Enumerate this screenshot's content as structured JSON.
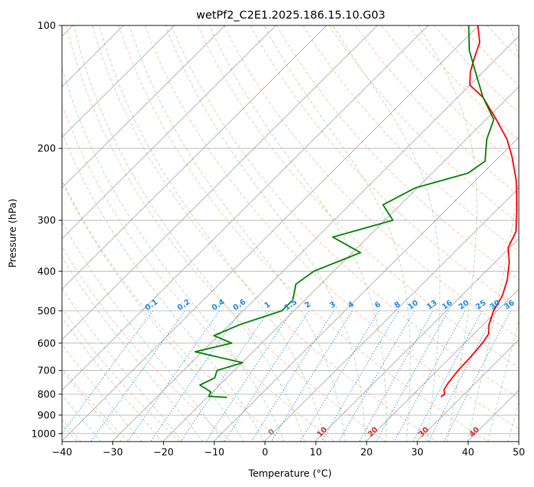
{
  "chart_data": {
    "type": "line",
    "subtype": "skew-t log-p diagram",
    "title": "wetPf2_C2E1.2025.186.15.10.G03",
    "xlabel": "Temperature (°C)",
    "ylabel": "Pressure (hPa)",
    "xlim": [
      -40,
      50
    ],
    "ylim": [
      1050,
      100
    ],
    "y_scale": "log",
    "x_ticks": [
      -40,
      -30,
      -20,
      -10,
      0,
      10,
      20,
      30,
      40,
      50
    ],
    "y_ticks": [
      100,
      200,
      300,
      400,
      500,
      600,
      700,
      800,
      900,
      1000
    ],
    "x_tick_labels": [
      "−40",
      "−30",
      "−20",
      "−10",
      "0",
      "10",
      "20",
      "30",
      "40",
      "50"
    ],
    "y_tick_labels": [
      "100",
      "200",
      "300",
      "400",
      "500",
      "600",
      "700",
      "800",
      "900",
      "1000"
    ],
    "grid": true,
    "legend": "none",
    "series": [
      {
        "color": "#ff0000",
        "points": [
          {
            "p": 812,
            "t": 25.8
          },
          {
            "p": 800,
            "t": 26.0
          },
          {
            "p": 780,
            "t": 25.0
          },
          {
            "p": 750,
            "t": 24.5
          },
          {
            "p": 700,
            "t": 24.0
          },
          {
            "p": 650,
            "t": 23.8
          },
          {
            "p": 600,
            "t": 23.4
          },
          {
            "p": 570,
            "t": 22.8
          },
          {
            "p": 540,
            "t": 21.0
          },
          {
            "p": 500,
            "t": 19.2
          },
          {
            "p": 460,
            "t": 18.0
          },
          {
            "p": 420,
            "t": 15.8
          },
          {
            "p": 380,
            "t": 12.7
          },
          {
            "p": 350,
            "t": 9.6
          },
          {
            "p": 320,
            "t": 8.0
          },
          {
            "p": 280,
            "t": 3.5
          },
          {
            "p": 240,
            "t": -2.0
          },
          {
            "p": 210,
            "t": -7.5
          },
          {
            "p": 190,
            "t": -12.0
          },
          {
            "p": 170,
            "t": -18.0
          },
          {
            "p": 150,
            "t": -25.0
          },
          {
            "p": 140,
            "t": -30.0
          },
          {
            "p": 130,
            "t": -32.5
          },
          {
            "p": 120,
            "t": -34.5
          },
          {
            "p": 110,
            "t": -36.5
          },
          {
            "p": 100,
            "t": -40.2
          }
        ]
      },
      {
        "color": "#008000",
        "points": [
          {
            "p": 815,
            "t": -16.2
          },
          {
            "p": 810,
            "t": -20.0
          },
          {
            "p": 790,
            "t": -20.5
          },
          {
            "p": 760,
            "t": -24.0
          },
          {
            "p": 730,
            "t": -22.5
          },
          {
            "p": 700,
            "t": -23.5
          },
          {
            "p": 670,
            "t": -20.0
          },
          {
            "p": 630,
            "t": -31.5
          },
          {
            "p": 600,
            "t": -26.0
          },
          {
            "p": 575,
            "t": -31.0
          },
          {
            "p": 540,
            "t": -28.0
          },
          {
            "p": 500,
            "t": -22.5
          },
          {
            "p": 470,
            "t": -22.5
          },
          {
            "p": 430,
            "t": -25.0
          },
          {
            "p": 400,
            "t": -24.0
          },
          {
            "p": 360,
            "t": -18.5
          },
          {
            "p": 330,
            "t": -27.0
          },
          {
            "p": 300,
            "t": -18.5
          },
          {
            "p": 275,
            "t": -23.5
          },
          {
            "p": 250,
            "t": -20.5
          },
          {
            "p": 230,
            "t": -13.0
          },
          {
            "p": 215,
            "t": -12.0
          },
          {
            "p": 190,
            "t": -16.0
          },
          {
            "p": 170,
            "t": -18.5
          },
          {
            "p": 150,
            "t": -25.0
          },
          {
            "p": 130,
            "t": -31.5
          },
          {
            "p": 115,
            "t": -37.0
          },
          {
            "p": 100,
            "t": -42.0
          }
        ]
      }
    ],
    "annotations": {
      "dry_adiabats": [
        "-100",
        "-90",
        "-80",
        "-70",
        "-60",
        "-50",
        "-40",
        "-30",
        "-20",
        "-10",
        "0",
        "10",
        "20",
        "30",
        "40"
      ],
      "mixing_ratios": [
        "0.1",
        "0.2",
        "0.4",
        "0.6",
        "1",
        "1.5",
        "2",
        "3",
        "4",
        "6",
        "8",
        "10",
        "13",
        "16",
        "20",
        "25",
        "30",
        "36"
      ]
    },
    "colors": {
      "temperature": "#ff0000",
      "dewpoint": "#008000",
      "dry_adiabat_cold_label": "#1f77b4",
      "dry_adiabat_warm_label": "#d62728",
      "dry_adiabat_zero_label": "#7f7f7f",
      "mixing_ratio": "#1e88e5",
      "isotherm": "#999999"
    }
  }
}
